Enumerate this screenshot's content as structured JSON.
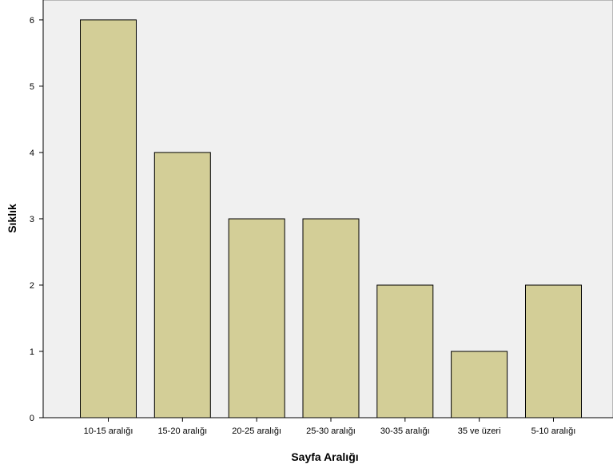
{
  "chart_data": {
    "type": "bar",
    "xlabel": "Sayfa Aralığı",
    "ylabel": "Sıklık",
    "categories": [
      "10-15 aralığı",
      "15-20 aralığı",
      "20-25 aralığı",
      "25-30 aralığı",
      "30-35 aralığı",
      "35 ve üzeri",
      "5-10 aralığı"
    ],
    "values": [
      6,
      4,
      3,
      3,
      2,
      1,
      2
    ],
    "ylim": [
      0,
      6.3
    ],
    "yticks": [
      0,
      1,
      2,
      3,
      4,
      5,
      6
    ],
    "grid": false,
    "legend": "none",
    "colors": {
      "plot_background": "#f0f0f0",
      "bar_fill": "#d3ce97",
      "bar_stroke": "#000000",
      "axis": "#000000"
    }
  }
}
